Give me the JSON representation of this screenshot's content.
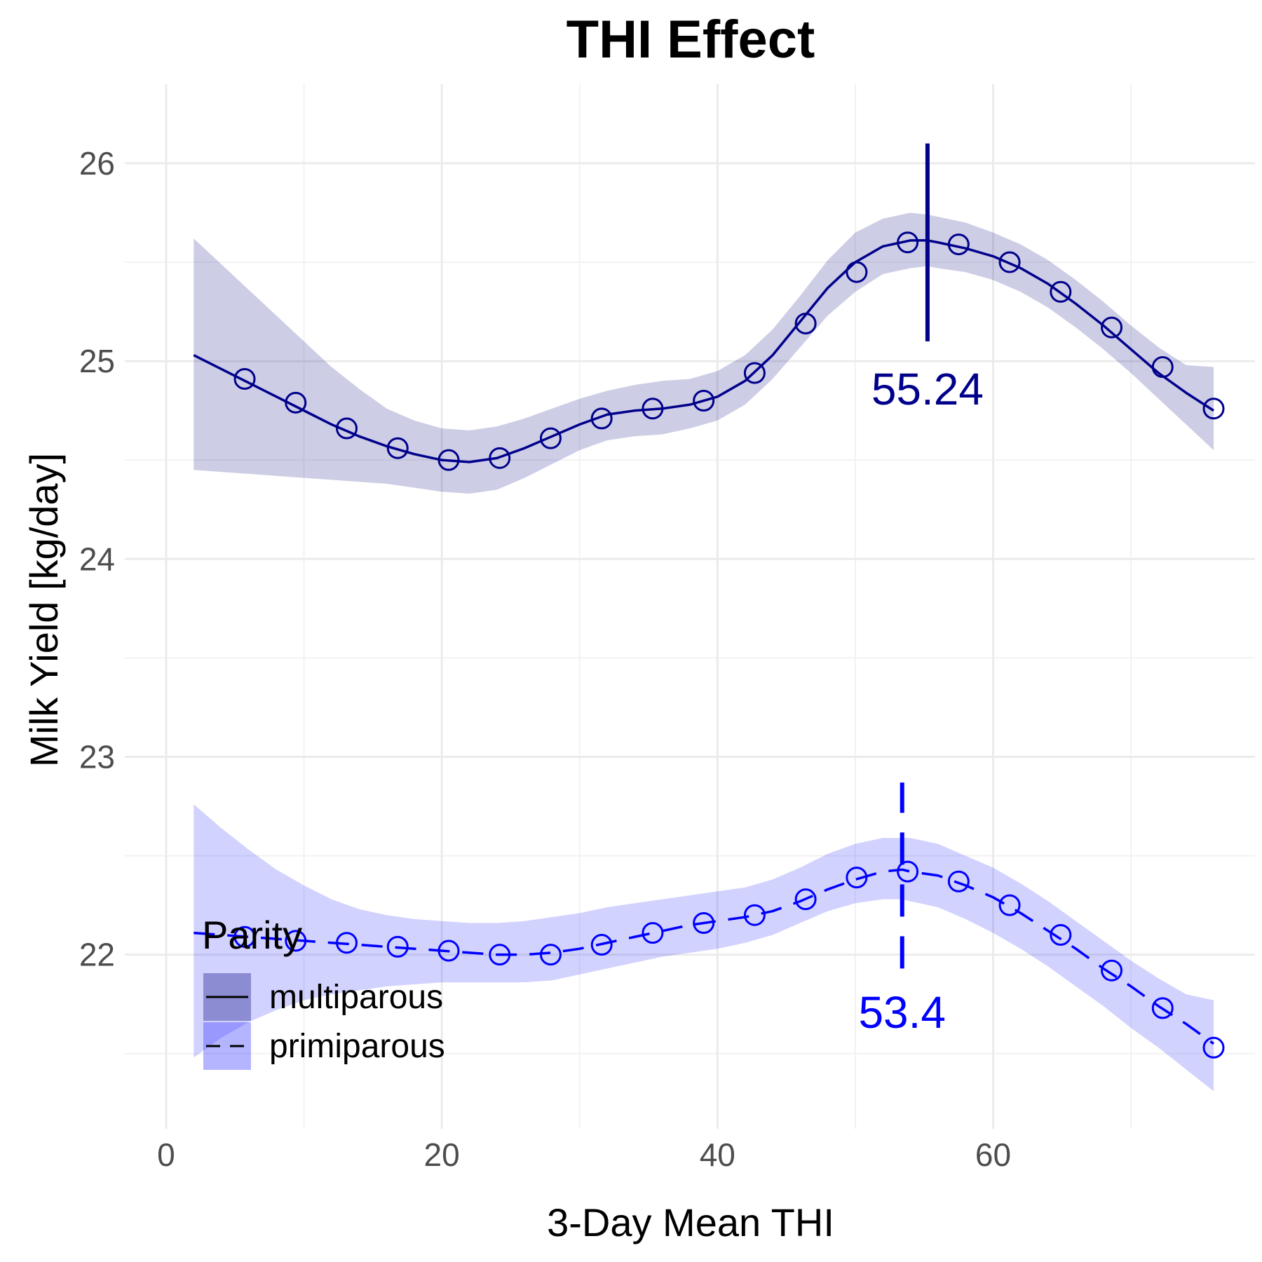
{
  "chart_data": {
    "type": "line",
    "title": "THI Effect",
    "xlabel": "3-Day Mean THI",
    "ylabel": "Milk Yield [kg/day]",
    "xlim": [
      -3,
      79
    ],
    "ylim": [
      21.12,
      26.4
    ],
    "x_ticks": [
      0,
      20,
      40,
      60
    ],
    "y_ticks": [
      22,
      23,
      24,
      25,
      26
    ],
    "grid": true,
    "legend": {
      "title": "Parity",
      "position": "bottom-left"
    },
    "colors": {
      "multiparous": "#00008b",
      "primiparous": "#0000ff",
      "multiparous_band": "#1a1a8c",
      "primiparous_band": "#3333ff"
    },
    "series": [
      {
        "name": "multiparous",
        "linetype": "solid",
        "line": {
          "x": [
            2,
            4,
            6,
            8,
            10,
            12,
            14,
            16,
            18,
            20,
            22,
            24,
            26,
            28,
            30,
            32,
            34,
            36,
            38,
            40,
            42,
            44,
            46,
            48,
            50,
            52,
            54,
            55.24,
            56,
            58,
            60,
            62,
            64,
            66,
            68,
            70,
            72,
            74,
            76
          ],
          "y": [
            25.03,
            24.96,
            24.89,
            24.82,
            24.75,
            24.68,
            24.62,
            24.57,
            24.53,
            24.5,
            24.49,
            24.51,
            24.56,
            24.62,
            24.68,
            24.73,
            24.75,
            24.76,
            24.78,
            24.82,
            24.9,
            25.03,
            25.2,
            25.37,
            25.5,
            25.58,
            25.61,
            25.61,
            25.6,
            25.57,
            25.53,
            25.47,
            25.39,
            25.29,
            25.18,
            25.06,
            24.94,
            24.84,
            24.75
          ]
        },
        "band": {
          "lower": [
            24.45,
            24.44,
            24.43,
            24.42,
            24.41,
            24.4,
            24.39,
            24.38,
            24.36,
            24.34,
            24.33,
            24.35,
            24.41,
            24.48,
            24.55,
            24.6,
            24.62,
            24.63,
            24.66,
            24.7,
            24.78,
            24.91,
            25.07,
            25.23,
            25.35,
            25.44,
            25.47,
            25.48,
            25.47,
            25.45,
            25.41,
            25.35,
            25.27,
            25.17,
            25.06,
            24.94,
            24.81,
            24.68,
            24.55
          ],
          "upper": [
            25.62,
            25.49,
            25.36,
            25.23,
            25.1,
            24.97,
            24.86,
            24.76,
            24.7,
            24.66,
            24.65,
            24.67,
            24.71,
            24.76,
            24.81,
            24.85,
            24.88,
            24.9,
            24.91,
            24.95,
            25.03,
            25.16,
            25.33,
            25.51,
            25.65,
            25.72,
            25.75,
            25.74,
            25.73,
            25.7,
            25.65,
            25.59,
            25.51,
            25.41,
            25.3,
            25.18,
            25.07,
            24.98,
            24.97
          ]
        },
        "points": {
          "x": [
            5.7,
            9.4,
            13.1,
            16.8,
            20.5,
            24.2,
            27.9,
            31.6,
            35.3,
            39.0,
            42.7,
            46.4,
            50.1,
            53.8,
            57.5,
            61.2,
            64.9,
            68.6,
            72.3,
            76.0
          ],
          "y": [
            24.91,
            24.79,
            24.66,
            24.56,
            24.5,
            24.51,
            24.61,
            24.71,
            24.76,
            24.8,
            24.94,
            25.19,
            25.45,
            25.6,
            25.59,
            25.5,
            25.35,
            25.17,
            24.97,
            24.76
          ]
        },
        "vline": {
          "x": 55.24,
          "ymin": 25.1,
          "ymax": 26.1,
          "label": "55.24",
          "label_y": 24.78
        }
      },
      {
        "name": "primiparous",
        "linetype": "dashed",
        "line": {
          "x": [
            2,
            4,
            6,
            8,
            10,
            12,
            14,
            16,
            18,
            20,
            22,
            24,
            26,
            28,
            30,
            32,
            34,
            36,
            38,
            40,
            42,
            44,
            46,
            48,
            50,
            52,
            53.4,
            54,
            56,
            58,
            60,
            62,
            64,
            66,
            68,
            70,
            72,
            74,
            76
          ],
          "y": [
            22.11,
            22.1,
            22.09,
            22.08,
            22.07,
            22.06,
            22.05,
            22.04,
            22.03,
            22.02,
            22.01,
            22.0,
            22.0,
            22.01,
            22.03,
            22.06,
            22.09,
            22.12,
            22.15,
            22.17,
            22.19,
            22.22,
            22.27,
            22.33,
            22.38,
            22.42,
            22.43,
            22.42,
            22.4,
            22.35,
            22.29,
            22.21,
            22.12,
            22.03,
            21.93,
            21.84,
            21.74,
            21.65,
            21.55
          ]
        },
        "band": {
          "lower": [
            21.48,
            21.58,
            21.66,
            21.72,
            21.77,
            21.8,
            21.82,
            21.84,
            21.85,
            21.86,
            21.86,
            21.86,
            21.86,
            21.87,
            21.9,
            21.93,
            21.96,
            21.99,
            22.01,
            22.03,
            22.06,
            22.1,
            22.16,
            22.22,
            22.26,
            22.28,
            22.28,
            22.27,
            22.24,
            22.18,
            22.11,
            22.03,
            21.94,
            21.84,
            21.74,
            21.63,
            21.53,
            21.42,
            21.31
          ],
          "upper": [
            22.76,
            22.64,
            22.53,
            22.43,
            22.35,
            22.28,
            22.23,
            22.2,
            22.18,
            22.17,
            22.16,
            22.16,
            22.17,
            22.19,
            22.21,
            22.24,
            22.26,
            22.28,
            22.3,
            22.32,
            22.34,
            22.38,
            22.44,
            22.51,
            22.56,
            22.59,
            22.59,
            22.59,
            22.56,
            22.5,
            22.44,
            22.36,
            22.27,
            22.17,
            22.07,
            21.97,
            21.88,
            21.8,
            21.77
          ]
        },
        "points": {
          "x": [
            5.7,
            9.4,
            13.1,
            16.8,
            20.5,
            24.2,
            27.9,
            31.6,
            35.3,
            39.0,
            42.7,
            46.4,
            50.1,
            53.8,
            57.5,
            61.2,
            64.9,
            68.6,
            72.3,
            76.0
          ],
          "y": [
            22.09,
            22.07,
            22.06,
            22.04,
            22.02,
            22.0,
            22.0,
            22.05,
            22.11,
            22.16,
            22.2,
            22.28,
            22.39,
            22.42,
            22.37,
            22.25,
            22.1,
            21.92,
            21.73,
            21.53
          ]
        },
        "vline": {
          "x": 53.4,
          "ymin": 21.93,
          "ymax": 22.87,
          "label": "53.4",
          "label_y": 21.63
        }
      }
    ]
  }
}
